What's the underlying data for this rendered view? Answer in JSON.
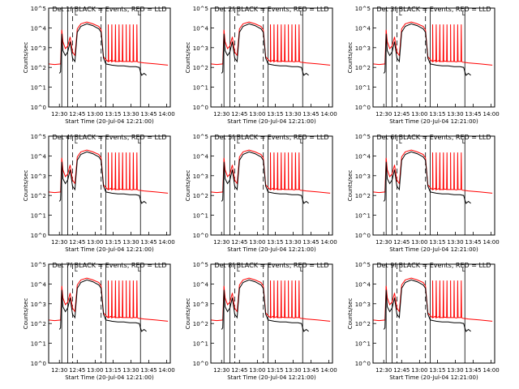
{
  "figure": {
    "xlabel": "Start Time (20-Jul-04 12:21:00)",
    "ylabel": "Counts/sec"
  },
  "chart_data": [
    {
      "type": "line",
      "title": "Det 1f BLACK = Events, RED = LLD"
    },
    {
      "type": "line",
      "title": "Det 2f BLACK = Events, RED = LLD"
    },
    {
      "type": "line",
      "title": "Det 3f BLACK = Events, RED = LLD"
    },
    {
      "type": "line",
      "title": "Det 4f BLACK = Events, RED = LLD"
    },
    {
      "type": "line",
      "title": "Det 5f BLACK = Events, RED = LLD"
    },
    {
      "type": "line",
      "title": "Det 6f BLACK = Events, RED = LLD"
    },
    {
      "type": "line",
      "title": "Det 7f BLACK = Events, RED = LLD"
    },
    {
      "type": "line",
      "title": "Det 8f BLACK = Events, RED = LLD"
    },
    {
      "type": "line",
      "title": "Det 9f BLACK = Events, RED = LLD"
    }
  ],
  "shared": {
    "type": "line",
    "x_ticks": [
      "12:30",
      "12:45",
      "13:00",
      "13:15",
      "13:30",
      "13:45",
      "14:00"
    ],
    "x_tick_minutes": [
      9,
      24,
      39,
      54,
      69,
      84,
      99
    ],
    "xlim_minutes": [
      0,
      102
    ],
    "y_scale": "log",
    "ylim": [
      1,
      100000
    ],
    "y_ticks": [
      "10^0",
      "10^1",
      "10^2",
      "10^3",
      "10^4",
      "10^5"
    ],
    "vertical_markers_minutes": {
      "solid": [
        11,
        16,
        48,
        77
      ],
      "dashed": [
        20,
        44
      ],
      "label_mark_minutes": [
        23,
        76
      ]
    },
    "series": [
      {
        "name": "Events",
        "color": "#000000",
        "points": [
          [
            9,
            50
          ],
          [
            10,
            60
          ],
          [
            11,
            5000
          ],
          [
            12,
            700
          ],
          [
            14,
            400
          ],
          [
            16,
            600
          ],
          [
            18,
            2000
          ],
          [
            20,
            300
          ],
          [
            22,
            200
          ],
          [
            24,
            6000
          ],
          [
            27,
            12000
          ],
          [
            32,
            16000
          ],
          [
            37,
            13000
          ],
          [
            42,
            9000
          ],
          [
            44,
            6000
          ],
          [
            46,
            300
          ],
          [
            48,
            150
          ],
          [
            53,
            130
          ],
          [
            58,
            120
          ],
          [
            63,
            120
          ],
          [
            68,
            110
          ],
          [
            73,
            110
          ],
          [
            76,
            100
          ],
          [
            77,
            60
          ],
          [
            78,
            40
          ],
          [
            80,
            50
          ],
          [
            82,
            40
          ]
        ]
      },
      {
        "name": "LLD",
        "color": "#ff0000",
        "points": [
          [
            0,
            150
          ],
          [
            5,
            140
          ],
          [
            10,
            150
          ],
          [
            11,
            8000
          ],
          [
            12,
            2000
          ],
          [
            14,
            900
          ],
          [
            16,
            1200
          ],
          [
            18,
            3500
          ],
          [
            20,
            600
          ],
          [
            22,
            400
          ],
          [
            24,
            9000
          ],
          [
            27,
            16000
          ],
          [
            32,
            20000
          ],
          [
            37,
            16000
          ],
          [
            42,
            12000
          ],
          [
            44,
            8000
          ],
          [
            46,
            350
          ],
          [
            48,
            250
          ],
          [
            50,
            240
          ],
          [
            52,
            230
          ],
          [
            55,
            220
          ],
          [
            60,
            210
          ],
          [
            65,
            200
          ],
          [
            70,
            190
          ],
          [
            75,
            185
          ],
          [
            77,
            180
          ],
          [
            80,
            170
          ],
          [
            85,
            160
          ],
          [
            90,
            150
          ],
          [
            95,
            140
          ],
          [
            100,
            130
          ]
        ],
        "spikes_minutes": [
          50,
          53,
          56,
          59,
          62,
          65,
          68,
          71,
          74
        ],
        "spike_peak": 15000
      }
    ]
  }
}
